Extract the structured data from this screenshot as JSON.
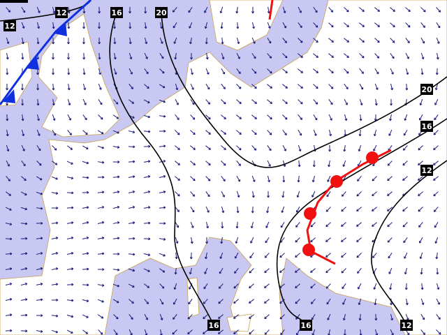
{
  "isoline_labels": [
    "12",
    "12",
    "16",
    "20",
    "20",
    "16",
    "12",
    "16",
    "16",
    "12"
  ]
}
